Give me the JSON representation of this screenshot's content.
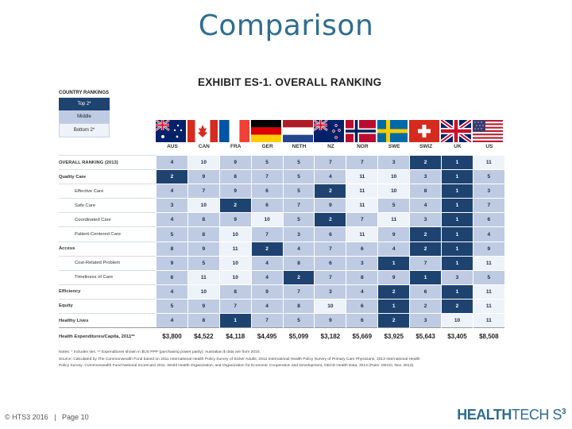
{
  "slide": {
    "title": "Comparison"
  },
  "exhibit": {
    "title": "EXHIBIT ES-1. OVERALL RANKING"
  },
  "legend": {
    "title": "COUNTRY RANKINGS",
    "items": [
      "Top 2*",
      "Middle",
      "Bottom 2*"
    ]
  },
  "flags": [
    "australia-flag-icon",
    "canada-flag-icon",
    "france-flag-icon",
    "germany-flag-icon",
    "netherlands-flag-icon",
    "new-zealand-flag-icon",
    "norway-flag-icon",
    "sweden-flag-icon",
    "switzerland-flag-icon",
    "uk-flag-icon",
    "us-flag-icon"
  ],
  "countries": [
    "AUS",
    "CAN",
    "FRA",
    "GER",
    "NETH",
    "NZ",
    "NOR",
    "SWE",
    "SWIZ",
    "UK",
    "US"
  ],
  "rows": [
    {
      "label": "OVERALL RANKING (2013)",
      "values": [
        "4",
        "10",
        "9",
        "5",
        "5",
        "7",
        "7",
        "3",
        "2",
        "1",
        "11"
      ],
      "tiers": [
        "m",
        "b",
        "m",
        "m",
        "m",
        "m",
        "m",
        "m",
        "t",
        "t",
        "b"
      ]
    },
    {
      "label": "Quality Care",
      "values": [
        "2",
        "9",
        "8",
        "7",
        "5",
        "4",
        "11",
        "10",
        "3",
        "1",
        "5"
      ],
      "tiers": [
        "t",
        "m",
        "m",
        "m",
        "m",
        "m",
        "b",
        "b",
        "m",
        "t",
        "m"
      ]
    },
    {
      "label": "Effective Care",
      "values": [
        "4",
        "7",
        "9",
        "6",
        "5",
        "2",
        "11",
        "10",
        "8",
        "1",
        "3"
      ],
      "tiers": [
        "m",
        "m",
        "m",
        "m",
        "m",
        "t",
        "b",
        "b",
        "m",
        "t",
        "m"
      ]
    },
    {
      "label": "Safe Care",
      "values": [
        "3",
        "10",
        "2",
        "6",
        "7",
        "9",
        "11",
        "5",
        "4",
        "1",
        "7"
      ],
      "tiers": [
        "m",
        "b",
        "t",
        "m",
        "m",
        "m",
        "b",
        "m",
        "m",
        "t",
        "m"
      ]
    },
    {
      "label": "Coordinated Care",
      "values": [
        "4",
        "8",
        "9",
        "10",
        "5",
        "2",
        "7",
        "11",
        "3",
        "1",
        "6"
      ],
      "tiers": [
        "m",
        "m",
        "m",
        "b",
        "m",
        "t",
        "m",
        "b",
        "m",
        "t",
        "m"
      ]
    },
    {
      "label": "Patient-Centered Care",
      "values": [
        "5",
        "8",
        "10",
        "7",
        "3",
        "6",
        "11",
        "9",
        "2",
        "1",
        "4"
      ],
      "tiers": [
        "m",
        "m",
        "b",
        "m",
        "m",
        "m",
        "b",
        "m",
        "t",
        "t",
        "m"
      ]
    },
    {
      "label": "Access",
      "values": [
        "8",
        "9",
        "11",
        "2",
        "4",
        "7",
        "6",
        "4",
        "2",
        "1",
        "9"
      ],
      "tiers": [
        "m",
        "m",
        "b",
        "t",
        "m",
        "m",
        "m",
        "m",
        "t",
        "t",
        "m"
      ]
    },
    {
      "label": "Cost-Related Problem",
      "values": [
        "9",
        "5",
        "10",
        "4",
        "8",
        "6",
        "3",
        "1",
        "7",
        "1",
        "11"
      ],
      "tiers": [
        "m",
        "m",
        "b",
        "m",
        "m",
        "m",
        "m",
        "t",
        "m",
        "t",
        "b"
      ]
    },
    {
      "label": "Timeliness of Care",
      "values": [
        "6",
        "11",
        "10",
        "4",
        "2",
        "7",
        "8",
        "9",
        "1",
        "3",
        "5"
      ],
      "tiers": [
        "m",
        "b",
        "b",
        "m",
        "t",
        "m",
        "m",
        "m",
        "t",
        "m",
        "m"
      ]
    },
    {
      "label": "Efficiency",
      "values": [
        "4",
        "10",
        "8",
        "9",
        "7",
        "3",
        "4",
        "2",
        "6",
        "1",
        "11"
      ],
      "tiers": [
        "m",
        "b",
        "m",
        "m",
        "m",
        "m",
        "m",
        "t",
        "m",
        "t",
        "b"
      ]
    },
    {
      "label": "Equity",
      "values": [
        "5",
        "9",
        "7",
        "4",
        "8",
        "10",
        "6",
        "1",
        "2",
        "2",
        "11"
      ],
      "tiers": [
        "m",
        "m",
        "m",
        "m",
        "m",
        "b",
        "m",
        "t",
        "m",
        "t",
        "b"
      ]
    },
    {
      "label": "Healthy Lives",
      "values": [
        "4",
        "8",
        "1",
        "7",
        "5",
        "9",
        "6",
        "2",
        "3",
        "10",
        "11"
      ],
      "tiers": [
        "m",
        "m",
        "t",
        "m",
        "m",
        "m",
        "m",
        "t",
        "m",
        "b",
        "b"
      ]
    },
    {
      "label": "Health Expenditures/Capita, 2011**",
      "values": [
        "$3,800",
        "$4,522",
        "$4,118",
        "$4,495",
        "$5,099",
        "$3,182",
        "$5,669",
        "$3,925",
        "$5,643",
        "$3,405",
        "$8,508"
      ],
      "tiers": [
        "",
        "",
        "",
        "",
        "",
        "",
        "",
        "",
        "",
        "",
        ""
      ]
    }
  ],
  "notes": {
    "line1": "Notes: * Includes ties. ** Expenditures shown in $US PPP (purchasing power parity); Australian $ data are from 2010.",
    "line2": "Source: Calculated by The Commonwealth Fund based on 2011 International Health Policy Survey of Sicker Adults; 2012 International Health Policy Survey of Primary Care Physicians; 2013 International Health",
    "line3": "Policy Survey; Commonwealth Fund National Scorecard 2011; World Health Organization; and Organization for Economic Cooperation and Development, OECD Health Data, 2013 (Paris: OECD, Nov. 2013)."
  },
  "footer": {
    "copyright": "© HTS3 2016",
    "separator": "|",
    "page": "Page 10"
  },
  "logo": {
    "part1": "HEALTH",
    "part2": "TECH S",
    "superscript": "3"
  },
  "colors": {
    "top": "#1e4370",
    "middle": "#bfcbe3",
    "bottom": "#eef2f9",
    "title": "#2f6d8f"
  }
}
